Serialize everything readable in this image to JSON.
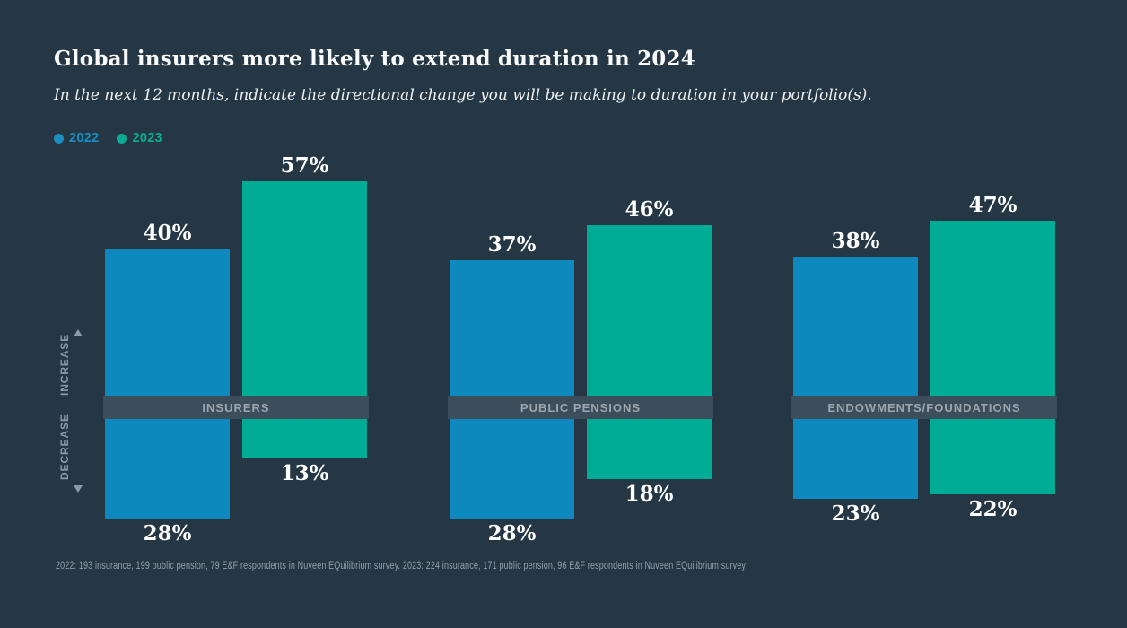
{
  "page": {
    "colors": {
      "background": "#253744",
      "band": "#3C4E5C",
      "value_text": "#FFFFFF",
      "muted_text": "#93A0AA"
    }
  },
  "header": {
    "title": "Global insurers more likely to extend duration in 2024",
    "subtitle": "In the next 12 months, indicate the directional change you will be making to duration in your portfolio(s)."
  },
  "legend": [
    {
      "label": "2022",
      "color": "#1B8DC0"
    },
    {
      "label": "2023",
      "color": "#0CAC93"
    }
  ],
  "axis": {
    "increase_label": "INCREASE",
    "decrease_label": "DECREASE"
  },
  "chart_data": {
    "type": "bar",
    "variant": "diverging-grouped-vertical",
    "title": "Global insurers more likely to extend duration in 2024",
    "unit": "%",
    "categories": [
      "INSURERS",
      "PUBLIC PENSIONS",
      "ENDOWMENTS/FOUNDATIONS"
    ],
    "series": [
      {
        "name": "2022",
        "color": "#0D89BE",
        "increase": [
          40,
          37,
          38
        ],
        "decrease": [
          28,
          28,
          23
        ]
      },
      {
        "name": "2023",
        "color": "#00AC96",
        "increase": [
          57,
          46,
          47
        ],
        "decrease": [
          13,
          18,
          22
        ]
      }
    ],
    "value_suffix": "%",
    "axis_direction_labels": {
      "up": "INCREASE",
      "down": "DECREASE"
    },
    "legend_position": "top-left",
    "grid": false
  },
  "footnote": "2022: 193 insurance, 199 public pension, 79 E&F respondents in Nuveen EQuilibrium survey. 2023: 224 insurance, 171 public pension, 96 E&F respondents in Nuveen EQuilibrium survey"
}
